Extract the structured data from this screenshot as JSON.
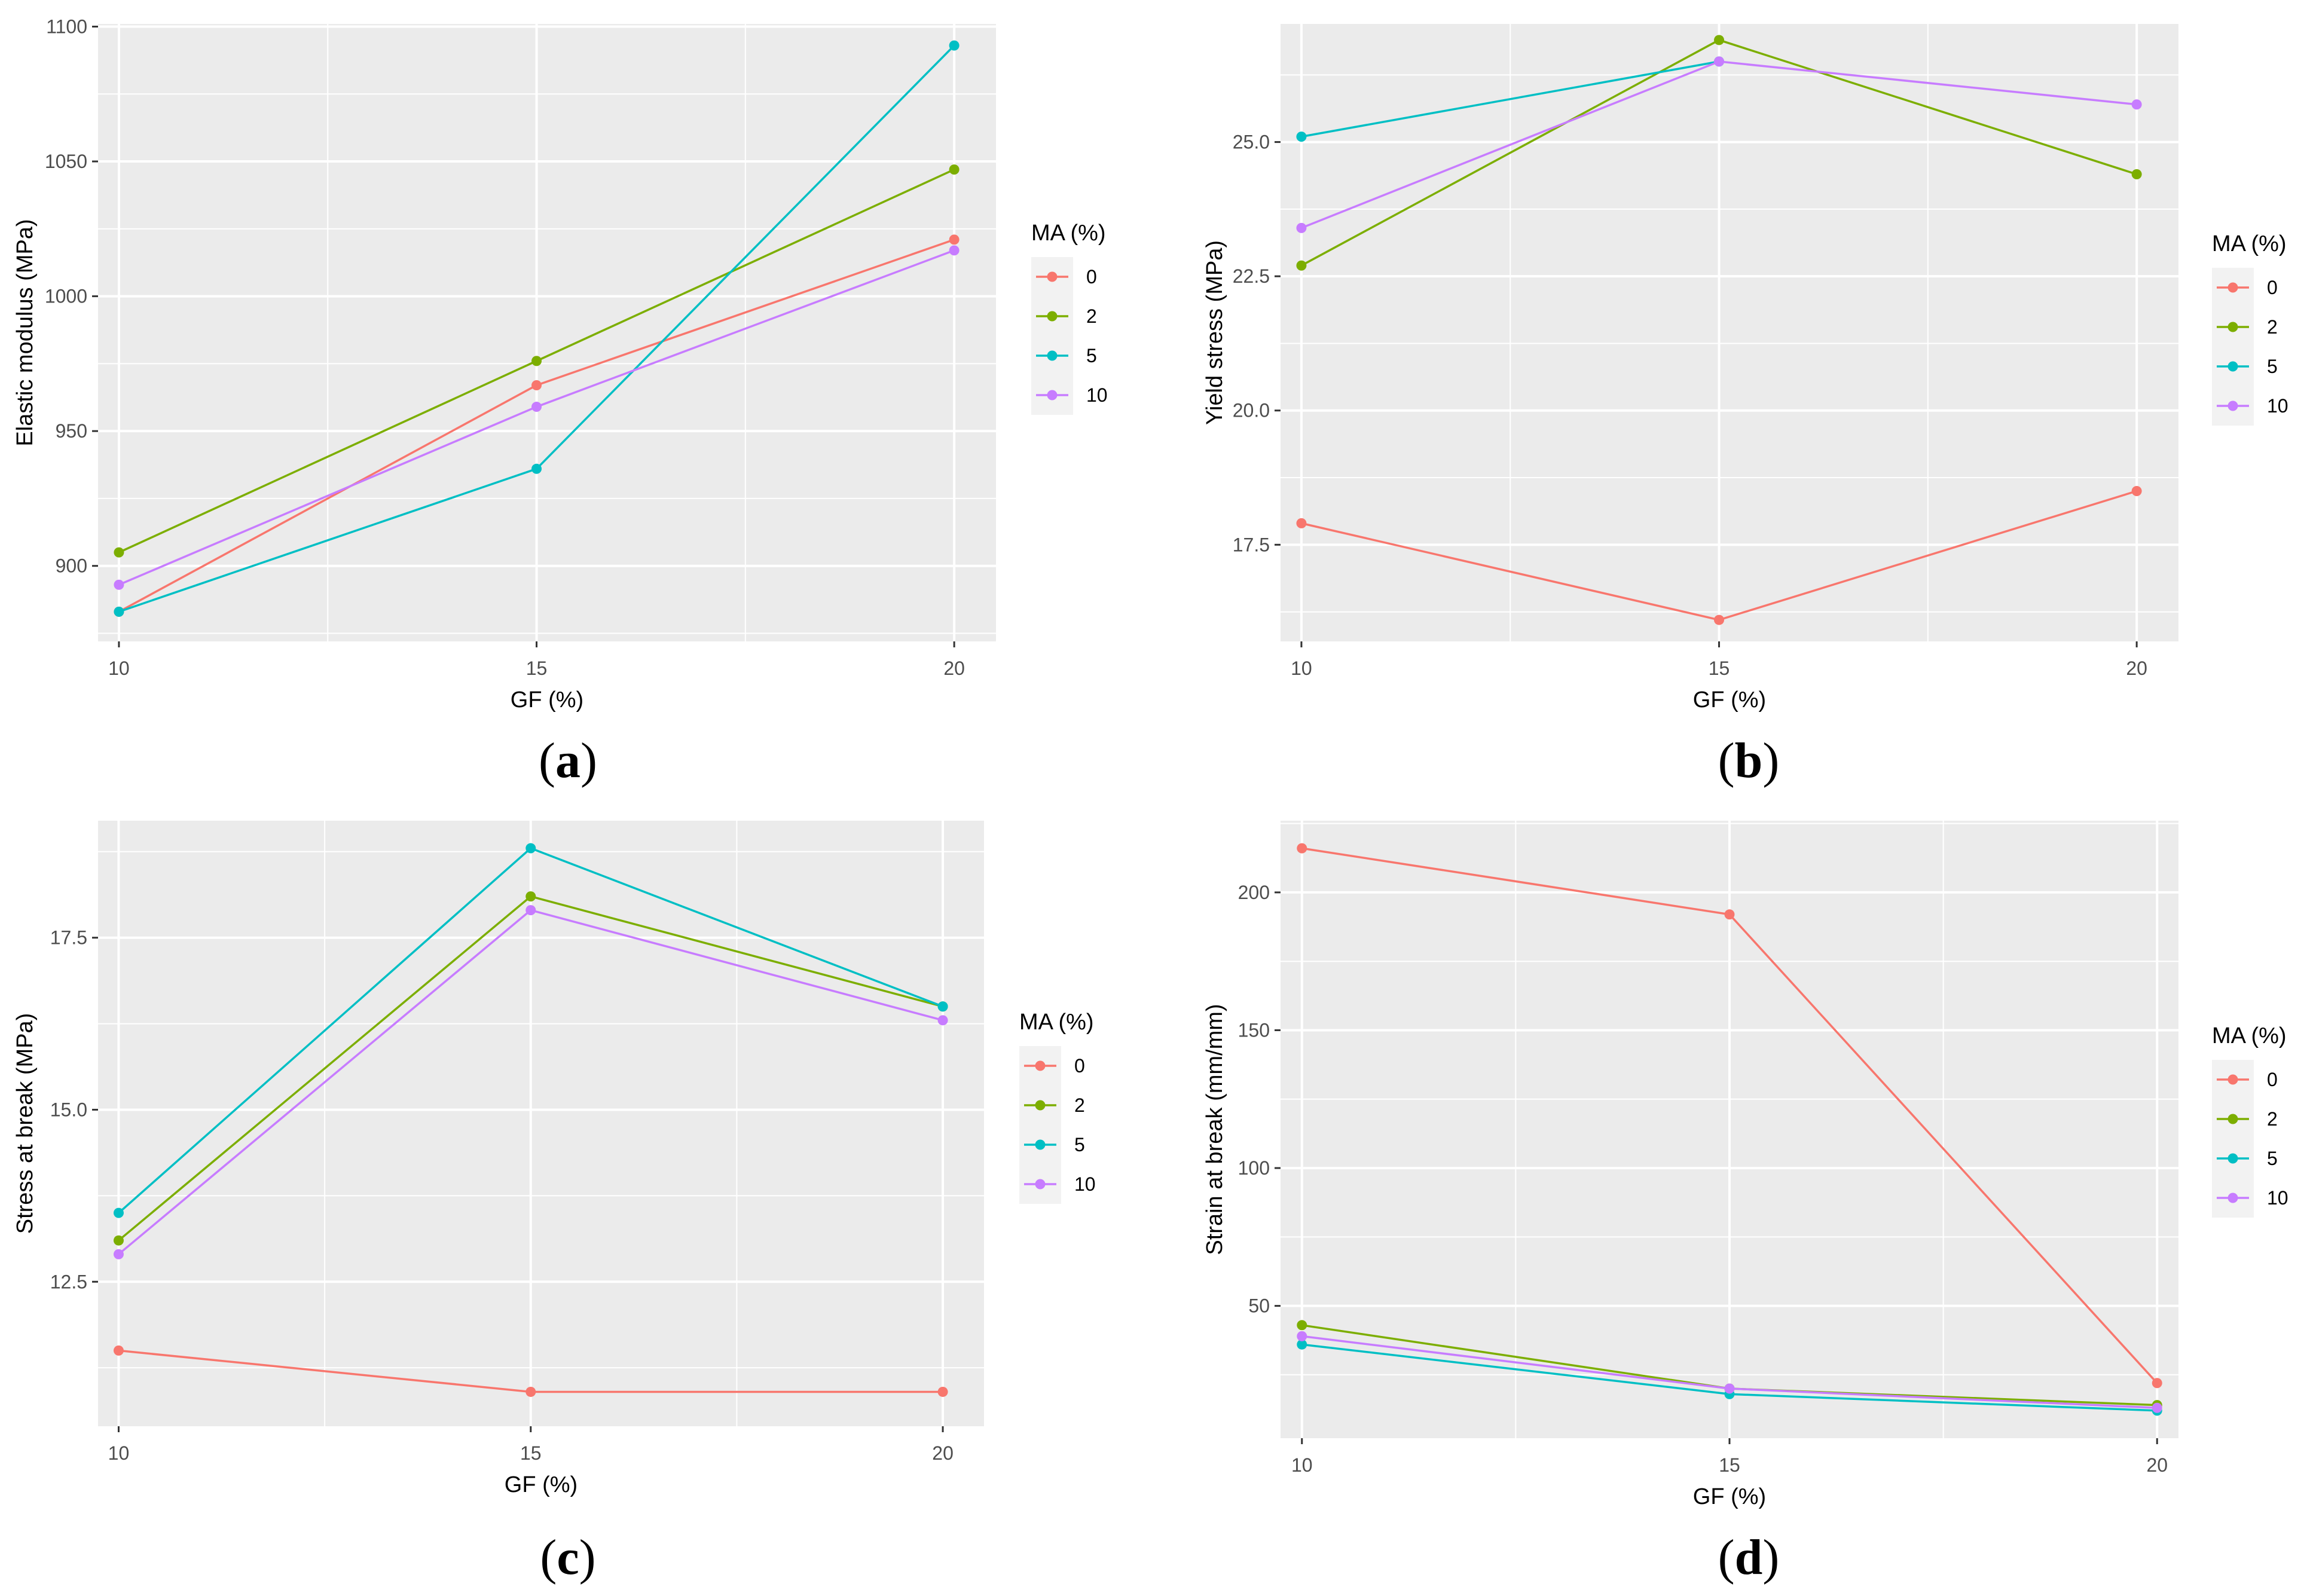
{
  "figure": {
    "legend_title": "MA (%)",
    "series_colors": {
      "0": "#F8766D",
      "2": "#7CAE00",
      "5": "#00BFC4",
      "10": "#C77CFF"
    }
  },
  "chart_data": [
    {
      "type": "line",
      "panel": "a",
      "caption_letter": "a",
      "xlabel": "GF (%)",
      "ylabel": "Elastic modulus (MPa)",
      "x": [
        10,
        15,
        20
      ],
      "xlim": [
        9.75,
        20.5
      ],
      "ylim": [
        872,
        1101
      ],
      "xticks": [
        10,
        15,
        20
      ],
      "xtick_labels": [
        "10",
        "15",
        "20"
      ],
      "yticks": [
        900,
        950,
        1000,
        1050,
        1100
      ],
      "ytick_labels": [
        "900",
        "950",
        "1000",
        "1050",
        "1100"
      ],
      "legend_title": "MA (%)",
      "series": [
        {
          "name": "0",
          "color": "#F8766D",
          "values": [
            883,
            967,
            1021
          ]
        },
        {
          "name": "2",
          "color": "#7CAE00",
          "values": [
            905,
            976,
            1047
          ]
        },
        {
          "name": "5",
          "color": "#00BFC4",
          "values": [
            883,
            936,
            1093
          ]
        },
        {
          "name": "10",
          "color": "#C77CFF",
          "values": [
            893,
            959,
            1017
          ]
        }
      ]
    },
    {
      "type": "line",
      "panel": "b",
      "caption_letter": "b",
      "xlabel": "GF (%)",
      "ylabel": "Yield stress (MPa)",
      "x": [
        10,
        15,
        20
      ],
      "xlim": [
        9.75,
        20.5
      ],
      "ylim": [
        15.7,
        27.2
      ],
      "xticks": [
        10,
        15,
        20
      ],
      "xtick_labels": [
        "10",
        "15",
        "20"
      ],
      "yticks": [
        17.5,
        20.0,
        22.5,
        25.0
      ],
      "ytick_labels": [
        "17.5",
        "20.0",
        "22.5",
        "25.0"
      ],
      "legend_title": "MA (%)",
      "series": [
        {
          "name": "0",
          "color": "#F8766D",
          "values": [
            17.9,
            16.1,
            18.5
          ]
        },
        {
          "name": "2",
          "color": "#7CAE00",
          "values": [
            22.7,
            26.9,
            24.4
          ]
        },
        {
          "name": "5",
          "color": "#00BFC4",
          "values": [
            25.1,
            26.5,
            null
          ]
        },
        {
          "name": "10",
          "color": "#C77CFF",
          "values": [
            23.4,
            26.5,
            25.7
          ]
        }
      ]
    },
    {
      "type": "line",
      "panel": "c",
      "caption_letter": "c",
      "xlabel": "GF (%)",
      "ylabel": "Stress at break (MPa)",
      "x": [
        10,
        15,
        20
      ],
      "xlim": [
        9.75,
        20.5
      ],
      "ylim": [
        10.4,
        19.2
      ],
      "xticks": [
        10,
        15,
        20
      ],
      "xtick_labels": [
        "10",
        "15",
        "20"
      ],
      "yticks": [
        12.5,
        15.0,
        17.5
      ],
      "ytick_labels": [
        "12.5",
        "15.0",
        "17.5"
      ],
      "legend_title": "MA (%)",
      "series": [
        {
          "name": "0",
          "color": "#F8766D",
          "values": [
            11.5,
            10.9,
            10.9
          ]
        },
        {
          "name": "2",
          "color": "#7CAE00",
          "values": [
            13.1,
            18.1,
            16.5
          ]
        },
        {
          "name": "5",
          "color": "#00BFC4",
          "values": [
            13.5,
            18.8,
            16.5
          ]
        },
        {
          "name": "10",
          "color": "#C77CFF",
          "values": [
            12.9,
            17.9,
            16.3
          ]
        }
      ]
    },
    {
      "type": "line",
      "panel": "d",
      "caption_letter": "d",
      "xlabel": "GF (%)",
      "ylabel": "Strain at break (mm/mm)",
      "x": [
        10,
        15,
        20
      ],
      "xlim": [
        9.75,
        20.25
      ],
      "ylim": [
        2,
        226
      ],
      "xticks": [
        10,
        15,
        20
      ],
      "xtick_labels": [
        "10",
        "15",
        "20"
      ],
      "yticks": [
        50,
        100,
        150,
        200
      ],
      "ytick_labels": [
        "50",
        "100",
        "150",
        "200"
      ],
      "legend_title": "MA (%)",
      "series": [
        {
          "name": "0",
          "color": "#F8766D",
          "values": [
            216,
            192,
            22
          ]
        },
        {
          "name": "2",
          "color": "#7CAE00",
          "values": [
            43,
            20,
            14
          ]
        },
        {
          "name": "5",
          "color": "#00BFC4",
          "values": [
            36,
            18,
            12
          ]
        },
        {
          "name": "10",
          "color": "#C77CFF",
          "values": [
            39,
            20,
            13
          ]
        }
      ]
    }
  ]
}
